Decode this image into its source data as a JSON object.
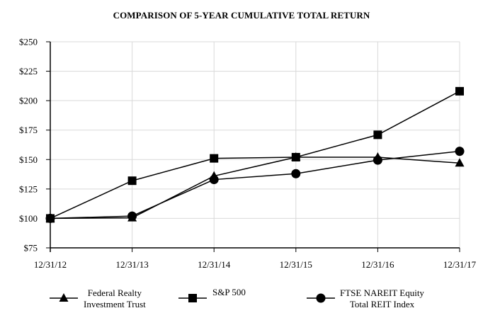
{
  "chart_data": {
    "type": "line",
    "title": "COMPARISON OF 5-YEAR CUMULATIVE TOTAL RETURN",
    "xlabel": "",
    "ylabel": "",
    "categories": [
      "12/31/12",
      "12/31/13",
      "12/31/14",
      "12/31/15",
      "12/31/16",
      "12/31/17"
    ],
    "y_ticks": [
      "$250",
      "$225",
      "$200",
      "$175",
      "$150",
      "$125",
      "$100",
      "$75"
    ],
    "ylim": [
      75,
      250
    ],
    "grid": true,
    "legend_position": "bottom",
    "series": [
      {
        "name": "Federal Realty Investment Trust",
        "legend_lines": [
          "Federal Realty",
          "Investment Trust"
        ],
        "marker": "triangle",
        "values": [
          100,
          100.5,
          136,
          152,
          152,
          147
        ]
      },
      {
        "name": "S&P 500",
        "legend_lines": [
          "S&P 500"
        ],
        "marker": "square",
        "values": [
          100,
          132,
          151,
          152,
          171,
          208
        ]
      },
      {
        "name": "FTSE NAREIT Equity Total REIT Index",
        "legend_lines": [
          "FTSE NAREIT Equity",
          "Total REIT Index"
        ],
        "marker": "circle",
        "values": [
          100,
          102,
          133,
          138,
          149.5,
          157
        ]
      }
    ]
  },
  "colors": {
    "line": "#000000",
    "grid": "#d9d9d9",
    "axis": "#000000",
    "background": "#ffffff"
  }
}
